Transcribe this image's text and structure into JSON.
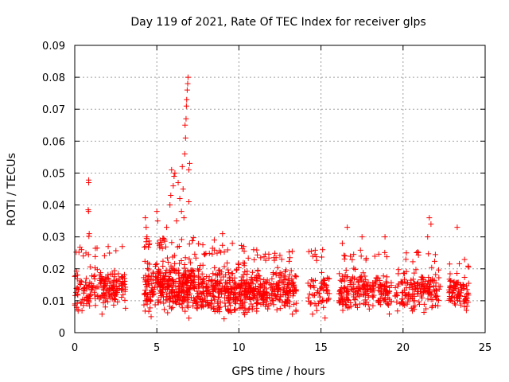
{
  "chart_data": {
    "type": "scatter",
    "title": "Day 119 of 2021, Rate Of TEC Index for receiver glps",
    "xlabel": "GPS time / hours",
    "ylabel": "ROTI / TECUs",
    "xlim": [
      0,
      25
    ],
    "ylim": [
      0,
      0.09
    ],
    "x_ticks": [
      "0",
      "5",
      "10",
      "15",
      "20",
      "25"
    ],
    "y_ticks": [
      "0",
      "0.01",
      "0.02",
      "0.03",
      "0.04",
      "0.05",
      "0.06",
      "0.07",
      "0.08",
      "0.09"
    ],
    "marker": "+",
    "color": "#ff0000",
    "grid": true,
    "series": [
      {
        "name": "ROTI",
        "clusters": [
          {
            "x": [
              0.0,
              3.1
            ],
            "y": [
              0.004,
              0.023
            ],
            "n": 220
          },
          {
            "x": [
              4.2,
              7.3
            ],
            "y": [
              0.003,
              0.026
            ],
            "n": 380
          },
          {
            "x": [
              7.3,
              10.4
            ],
            "y": [
              0.003,
              0.024
            ],
            "n": 300
          },
          {
            "x": [
              10.4,
              13.5
            ],
            "y": [
              0.004,
              0.022
            ],
            "n": 280
          },
          {
            "x": [
              14.2,
              15.5
            ],
            "y": [
              0.004,
              0.022
            ],
            "n": 70
          },
          {
            "x": [
              16.1,
              19.3
            ],
            "y": [
              0.004,
              0.022
            ],
            "n": 230
          },
          {
            "x": [
              19.5,
              22.3
            ],
            "y": [
              0.004,
              0.022
            ],
            "n": 170
          },
          {
            "x": [
              22.8,
              24.0
            ],
            "y": [
              0.005,
              0.02
            ],
            "n": 90
          }
        ],
        "points": [
          {
            "x": 0.85,
            "y": 0.0478
          },
          {
            "x": 0.85,
            "y": 0.047
          },
          {
            "x": 0.82,
            "y": 0.0385
          },
          {
            "x": 0.84,
            "y": 0.038
          },
          {
            "x": 0.88,
            "y": 0.031
          },
          {
            "x": 0.86,
            "y": 0.0302
          },
          {
            "x": 4.3,
            "y": 0.036
          },
          {
            "x": 4.35,
            "y": 0.033
          },
          {
            "x": 4.4,
            "y": 0.03
          },
          {
            "x": 5.0,
            "y": 0.038
          },
          {
            "x": 5.05,
            "y": 0.035
          },
          {
            "x": 5.2,
            "y": 0.029
          },
          {
            "x": 5.6,
            "y": 0.033
          },
          {
            "x": 5.8,
            "y": 0.04
          },
          {
            "x": 5.85,
            "y": 0.043
          },
          {
            "x": 5.9,
            "y": 0.051
          },
          {
            "x": 6.0,
            "y": 0.046
          },
          {
            "x": 6.05,
            "y": 0.049
          },
          {
            "x": 6.1,
            "y": 0.05
          },
          {
            "x": 6.2,
            "y": 0.035
          },
          {
            "x": 6.3,
            "y": 0.047
          },
          {
            "x": 6.4,
            "y": 0.042
          },
          {
            "x": 6.5,
            "y": 0.038
          },
          {
            "x": 6.55,
            "y": 0.052
          },
          {
            "x": 6.6,
            "y": 0.045
          },
          {
            "x": 6.65,
            "y": 0.036
          },
          {
            "x": 6.7,
            "y": 0.056
          },
          {
            "x": 6.75,
            "y": 0.061
          },
          {
            "x": 6.72,
            "y": 0.065
          },
          {
            "x": 6.78,
            "y": 0.067
          },
          {
            "x": 6.8,
            "y": 0.071
          },
          {
            "x": 6.82,
            "y": 0.073
          },
          {
            "x": 6.85,
            "y": 0.076
          },
          {
            "x": 6.88,
            "y": 0.078
          },
          {
            "x": 6.9,
            "y": 0.08
          },
          {
            "x": 6.95,
            "y": 0.051
          },
          {
            "x": 7.0,
            "y": 0.053
          },
          {
            "x": 6.95,
            "y": 0.041
          },
          {
            "x": 8.5,
            "y": 0.029
          },
          {
            "x": 9.0,
            "y": 0.031
          },
          {
            "x": 9.6,
            "y": 0.028
          },
          {
            "x": 10.3,
            "y": 0.027
          },
          {
            "x": 10.9,
            "y": 0.026
          },
          {
            "x": 15.1,
            "y": 0.026
          },
          {
            "x": 16.3,
            "y": 0.028
          },
          {
            "x": 16.6,
            "y": 0.033
          },
          {
            "x": 17.5,
            "y": 0.03
          },
          {
            "x": 18.9,
            "y": 0.03
          },
          {
            "x": 21.6,
            "y": 0.036
          },
          {
            "x": 21.7,
            "y": 0.034
          },
          {
            "x": 21.5,
            "y": 0.03
          },
          {
            "x": 23.3,
            "y": 0.033
          },
          {
            "x": 20.2,
            "y": 0.025
          }
        ]
      }
    ]
  }
}
